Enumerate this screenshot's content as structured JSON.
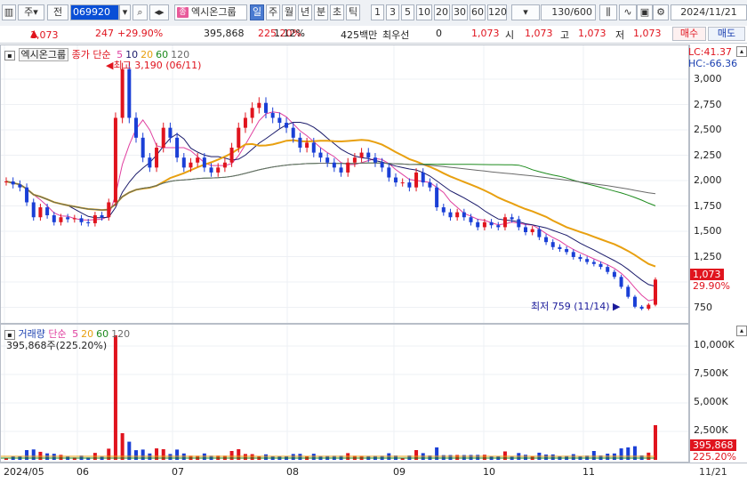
{
  "toolbar": {
    "type_label": "주",
    "period_label": "전",
    "code": "069920",
    "stock_name": "엑시온그룹",
    "stock_badge": "종",
    "periods": [
      "일",
      "주",
      "월",
      "년",
      "분",
      "초",
      "틱"
    ],
    "active_period": "일",
    "intervals": [
      "1",
      "3",
      "5",
      "10",
      "20",
      "30",
      "60",
      "120"
    ],
    "count": "130",
    "count_total": "/600",
    "date": "2024/11/21"
  },
  "quote": {
    "price": "1,073",
    "change": "247",
    "change_rate": "+29.90%",
    "volume": "395,868",
    "volume_rate": "225.20%",
    "turnover": "1.12%",
    "amount": "425백만",
    "priority_label": "최우선",
    "priority_value": "0",
    "price2": "1,073",
    "open_label": "시",
    "open": "1,073",
    "high_label": "고",
    "high": "1,073",
    "low_label": "저",
    "low": "1,073",
    "buy_label": "매수",
    "sell_label": "매도"
  },
  "price_panel": {
    "title": "엑시온그룹",
    "legend_prefix": "종가 단순",
    "ma_labels": [
      "5",
      "10",
      "20",
      "60",
      "120"
    ],
    "ma_colors": [
      "#e040a0",
      "#1a1a6a",
      "#e8a010",
      "#1c8a1c",
      "#6a6a6a"
    ],
    "lc": "LC:41.37",
    "hc": "HC:-66.36",
    "high_note": "최고 3,190 (06/11)",
    "low_note": "최저 759 (11/14)",
    "price_box": "1,073",
    "pct_box": "29.90%",
    "y_ticks": [
      "3,000",
      "2,750",
      "2,500",
      "2,250",
      "2,000",
      "1,750",
      "1,500",
      "1,250",
      "1,000",
      "750"
    ]
  },
  "volume_panel": {
    "title": "거래량",
    "legend_prefix": "단순",
    "ma_labels": [
      "5",
      "20",
      "60",
      "120"
    ],
    "ma_colors": [
      "#e040a0",
      "#e8a010",
      "#1c8a1c",
      "#6a6a6a"
    ],
    "info": "395,868주(225.20%)",
    "vol_box": "395,868",
    "pct_box": "225.20%",
    "y_ticks": [
      "10,000K",
      "7,500K",
      "5,000K",
      "2,500K"
    ]
  },
  "x_axis": {
    "labels": [
      "2024/05",
      "06",
      "07",
      "08",
      "09",
      "10",
      "11"
    ],
    "right_label": "11/21"
  },
  "chart_data": {
    "type": "candlestick",
    "series": [
      {
        "name": "종가",
        "values": [
          2060,
          2030,
          2000,
          1850,
          1700,
          1800,
          1720,
          1650,
          1700,
          1680,
          1690,
          1650,
          1640,
          1720,
          1700,
          1850,
          2700,
          3190,
          2700,
          2500,
          2300,
          2200,
          2400,
          2600,
          2500,
          2300,
          2200,
          2250,
          2300,
          2200,
          2150,
          2200,
          2250,
          2400,
          2600,
          2700,
          2800,
          2850,
          2750,
          2700,
          2650,
          2600,
          2500,
          2400,
          2450,
          2350,
          2300,
          2250,
          2200,
          2150,
          2250,
          2300,
          2350,
          2300,
          2250,
          2200,
          2100,
          2050,
          2050,
          2000,
          2150,
          2050,
          2000,
          1800,
          1750,
          1700,
          1750,
          1700,
          1650,
          1600,
          1650,
          1620,
          1600,
          1700,
          1680,
          1600,
          1550,
          1580,
          1500,
          1450,
          1400,
          1380,
          1350,
          1300,
          1280,
          1250,
          1230,
          1200,
          1150,
          1100,
          1000,
          900,
          800,
          780,
          820,
          1073
        ]
      }
    ],
    "ylim": [
      700,
      3250
    ],
    "high": 3190,
    "low": 759
  }
}
